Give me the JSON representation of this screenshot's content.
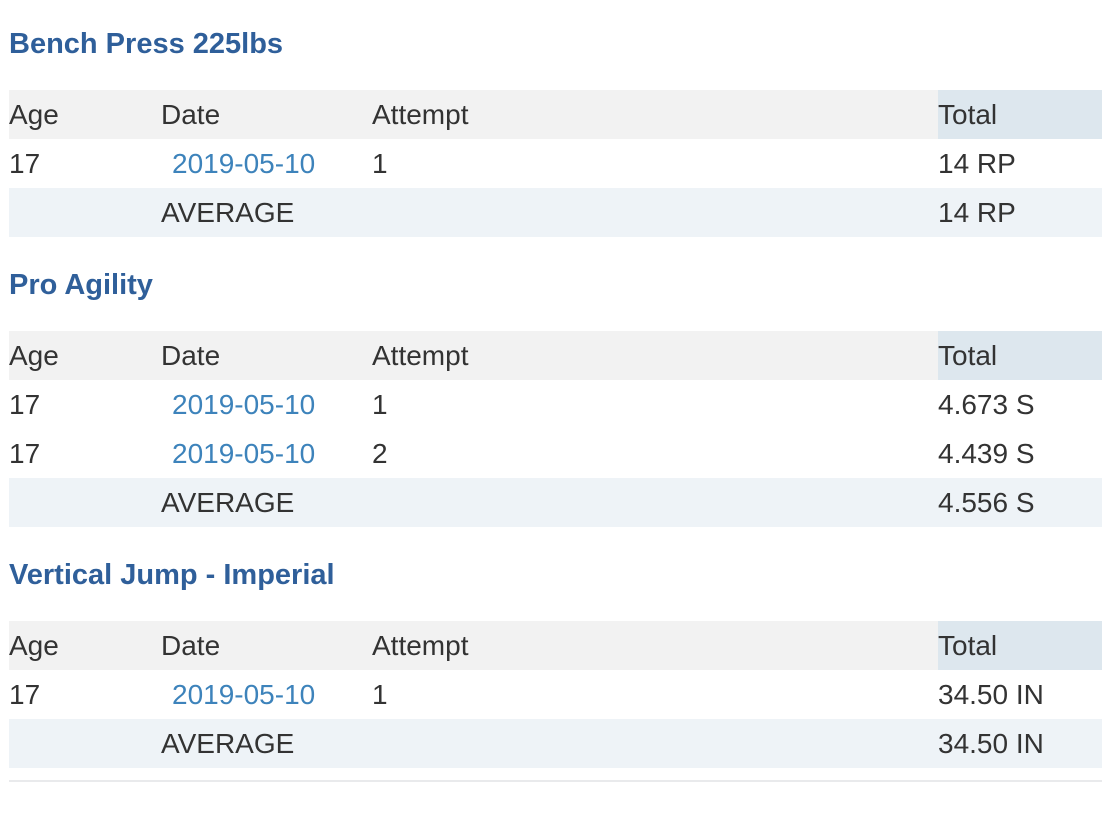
{
  "columns": {
    "age": "Age",
    "date": "Date",
    "attempt": "Attempt",
    "total": "Total"
  },
  "sections": [
    {
      "title": "Bench Press 225lbs",
      "rows": [
        {
          "age": "17",
          "date": "2019-05-10",
          "attempt": "1",
          "total": "14 RP"
        }
      ],
      "average_label": "AVERAGE",
      "average_total": "14 RP"
    },
    {
      "title": "Pro Agility",
      "rows": [
        {
          "age": "17",
          "date": "2019-05-10",
          "attempt": "1",
          "total": "4.673 S"
        },
        {
          "age": "17",
          "date": "2019-05-10",
          "attempt": "2",
          "total": "4.439 S"
        }
      ],
      "average_label": "AVERAGE",
      "average_total": "4.556 S"
    },
    {
      "title": "Vertical Jump - Imperial",
      "rows": [
        {
          "age": "17",
          "date": "2019-05-10",
          "attempt": "1",
          "total": "34.50 IN"
        }
      ],
      "average_label": "AVERAGE",
      "average_total": "34.50 IN"
    }
  ],
  "colors": {
    "title": "#2f5f9a",
    "link": "#3d83bb",
    "header_bg": "#f2f2f2",
    "total_header_bg": "#dde7ee",
    "stripe_bg": "#eef3f7"
  }
}
